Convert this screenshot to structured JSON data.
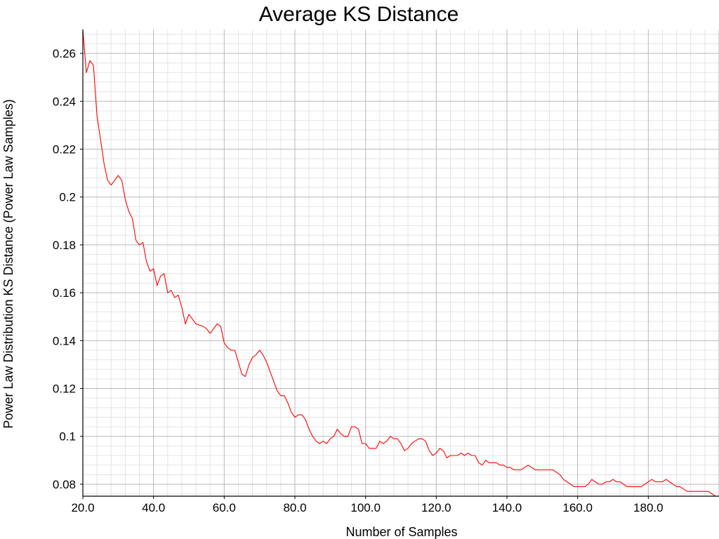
{
  "chart_data": {
    "type": "line",
    "title": "Average KS Distance",
    "xlabel": "Number of Samples",
    "ylabel": "Power Law Distribution KS Distance (Power Law Samples)",
    "xlim": [
      20,
      200
    ],
    "ylim": [
      0.075,
      0.27
    ],
    "x_ticks": [
      "20.0",
      "40.0",
      "60.0",
      "80.0",
      "100.0",
      "120.0",
      "140.0",
      "160.0",
      "180.0"
    ],
    "y_ticks": [
      "0.08",
      "0.1",
      "0.12",
      "0.14",
      "0.16",
      "0.18",
      "0.2",
      "0.22",
      "0.24",
      "0.26"
    ],
    "grid": true,
    "series": [
      {
        "color": "#ff0000",
        "points": [
          [
            20,
            0.27
          ],
          [
            21,
            0.252
          ],
          [
            22,
            0.257
          ],
          [
            23,
            0.255
          ],
          [
            24,
            0.234
          ],
          [
            25,
            0.224
          ],
          [
            26,
            0.214
          ],
          [
            27,
            0.207
          ],
          [
            28,
            0.205
          ],
          [
            29,
            0.207
          ],
          [
            30,
            0.209
          ],
          [
            31,
            0.207
          ],
          [
            32,
            0.199
          ],
          [
            33,
            0.194
          ],
          [
            34,
            0.191
          ],
          [
            35,
            0.182
          ],
          [
            36,
            0.18
          ],
          [
            37,
            0.181
          ],
          [
            38,
            0.173
          ],
          [
            39,
            0.169
          ],
          [
            40,
            0.17
          ],
          [
            41,
            0.163
          ],
          [
            42,
            0.167
          ],
          [
            43,
            0.168
          ],
          [
            44,
            0.16
          ],
          [
            45,
            0.161
          ],
          [
            46,
            0.158
          ],
          [
            47,
            0.159
          ],
          [
            48,
            0.154
          ],
          [
            49,
            0.147
          ],
          [
            50,
            0.151
          ],
          [
            51,
            0.149
          ],
          [
            52,
            0.147
          ],
          [
            54,
            0.146
          ],
          [
            55,
            0.145
          ],
          [
            56,
            0.143
          ],
          [
            57,
            0.145
          ],
          [
            58,
            0.147
          ],
          [
            59,
            0.146
          ],
          [
            60,
            0.139
          ],
          [
            61,
            0.137
          ],
          [
            62,
            0.136
          ],
          [
            63,
            0.136
          ],
          [
            64,
            0.131
          ],
          [
            65,
            0.126
          ],
          [
            66,
            0.125
          ],
          [
            67,
            0.13
          ],
          [
            68,
            0.133
          ],
          [
            69,
            0.134
          ],
          [
            70,
            0.136
          ],
          [
            71,
            0.134
          ],
          [
            72,
            0.131
          ],
          [
            73,
            0.127
          ],
          [
            74,
            0.123
          ],
          [
            75,
            0.119
          ],
          [
            76,
            0.117
          ],
          [
            77,
            0.117
          ],
          [
            78,
            0.114
          ],
          [
            79,
            0.11
          ],
          [
            80,
            0.108
          ],
          [
            81,
            0.109
          ],
          [
            82,
            0.109
          ],
          [
            83,
            0.107
          ],
          [
            84,
            0.103
          ],
          [
            85,
            0.1
          ],
          [
            86,
            0.098
          ],
          [
            87,
            0.097
          ],
          [
            88,
            0.098
          ],
          [
            89,
            0.097
          ],
          [
            90,
            0.099
          ],
          [
            91,
            0.1
          ],
          [
            92,
            0.103
          ],
          [
            93,
            0.101
          ],
          [
            94,
            0.1
          ],
          [
            95,
            0.1
          ],
          [
            96,
            0.104
          ],
          [
            97,
            0.104
          ],
          [
            98,
            0.103
          ],
          [
            99,
            0.097
          ],
          [
            100,
            0.097
          ],
          [
            101,
            0.095
          ],
          [
            102,
            0.095
          ],
          [
            103,
            0.095
          ],
          [
            104,
            0.098
          ],
          [
            105,
            0.097
          ],
          [
            106,
            0.098
          ],
          [
            107,
            0.1
          ],
          [
            108,
            0.099
          ],
          [
            109,
            0.099
          ],
          [
            110,
            0.097
          ],
          [
            111,
            0.094
          ],
          [
            112,
            0.095
          ],
          [
            113,
            0.097
          ],
          [
            114,
            0.098
          ],
          [
            115,
            0.099
          ],
          [
            116,
            0.099
          ],
          [
            117,
            0.098
          ],
          [
            118,
            0.094
          ],
          [
            119,
            0.092
          ],
          [
            120,
            0.093
          ],
          [
            121,
            0.095
          ],
          [
            122,
            0.094
          ],
          [
            123,
            0.091
          ],
          [
            124,
            0.092
          ],
          [
            125,
            0.092
          ],
          [
            126,
            0.092
          ],
          [
            127,
            0.093
          ],
          [
            128,
            0.092
          ],
          [
            129,
            0.093
          ],
          [
            130,
            0.092
          ],
          [
            131,
            0.092
          ],
          [
            132,
            0.089
          ],
          [
            133,
            0.088
          ],
          [
            134,
            0.09
          ],
          [
            135,
            0.089
          ],
          [
            136,
            0.089
          ],
          [
            137,
            0.089
          ],
          [
            138,
            0.088
          ],
          [
            139,
            0.088
          ],
          [
            140,
            0.087
          ],
          [
            141,
            0.087
          ],
          [
            142,
            0.086
          ],
          [
            143,
            0.086
          ],
          [
            144,
            0.086
          ],
          [
            145,
            0.087
          ],
          [
            146,
            0.088
          ],
          [
            147,
            0.087
          ],
          [
            148,
            0.086
          ],
          [
            149,
            0.086
          ],
          [
            150,
            0.086
          ],
          [
            151,
            0.086
          ],
          [
            152,
            0.086
          ],
          [
            153,
            0.086
          ],
          [
            154,
            0.085
          ],
          [
            155,
            0.084
          ],
          [
            156,
            0.082
          ],
          [
            157,
            0.081
          ],
          [
            158,
            0.08
          ],
          [
            159,
            0.079
          ],
          [
            160,
            0.079
          ],
          [
            161,
            0.079
          ],
          [
            162,
            0.079
          ],
          [
            163,
            0.08
          ],
          [
            164,
            0.082
          ],
          [
            165,
            0.081
          ],
          [
            166,
            0.08
          ],
          [
            167,
            0.08
          ],
          [
            168,
            0.081
          ],
          [
            169,
            0.081
          ],
          [
            170,
            0.082
          ],
          [
            171,
            0.081
          ],
          [
            172,
            0.081
          ],
          [
            173,
            0.08
          ],
          [
            174,
            0.079
          ],
          [
            175,
            0.079
          ],
          [
            176,
            0.079
          ],
          [
            177,
            0.079
          ],
          [
            178,
            0.079
          ],
          [
            179,
            0.08
          ],
          [
            180,
            0.081
          ],
          [
            181,
            0.082
          ],
          [
            182,
            0.081
          ],
          [
            183,
            0.081
          ],
          [
            184,
            0.081
          ],
          [
            185,
            0.082
          ],
          [
            186,
            0.081
          ],
          [
            187,
            0.08
          ],
          [
            188,
            0.079
          ],
          [
            189,
            0.079
          ],
          [
            190,
            0.078
          ],
          [
            191,
            0.077
          ],
          [
            192,
            0.077
          ],
          [
            193,
            0.077
          ],
          [
            194,
            0.077
          ],
          [
            195,
            0.077
          ],
          [
            196,
            0.077
          ],
          [
            197,
            0.077
          ],
          [
            198,
            0.076
          ],
          [
            199,
            0.075
          ],
          [
            200,
            0.075
          ]
        ]
      }
    ]
  }
}
